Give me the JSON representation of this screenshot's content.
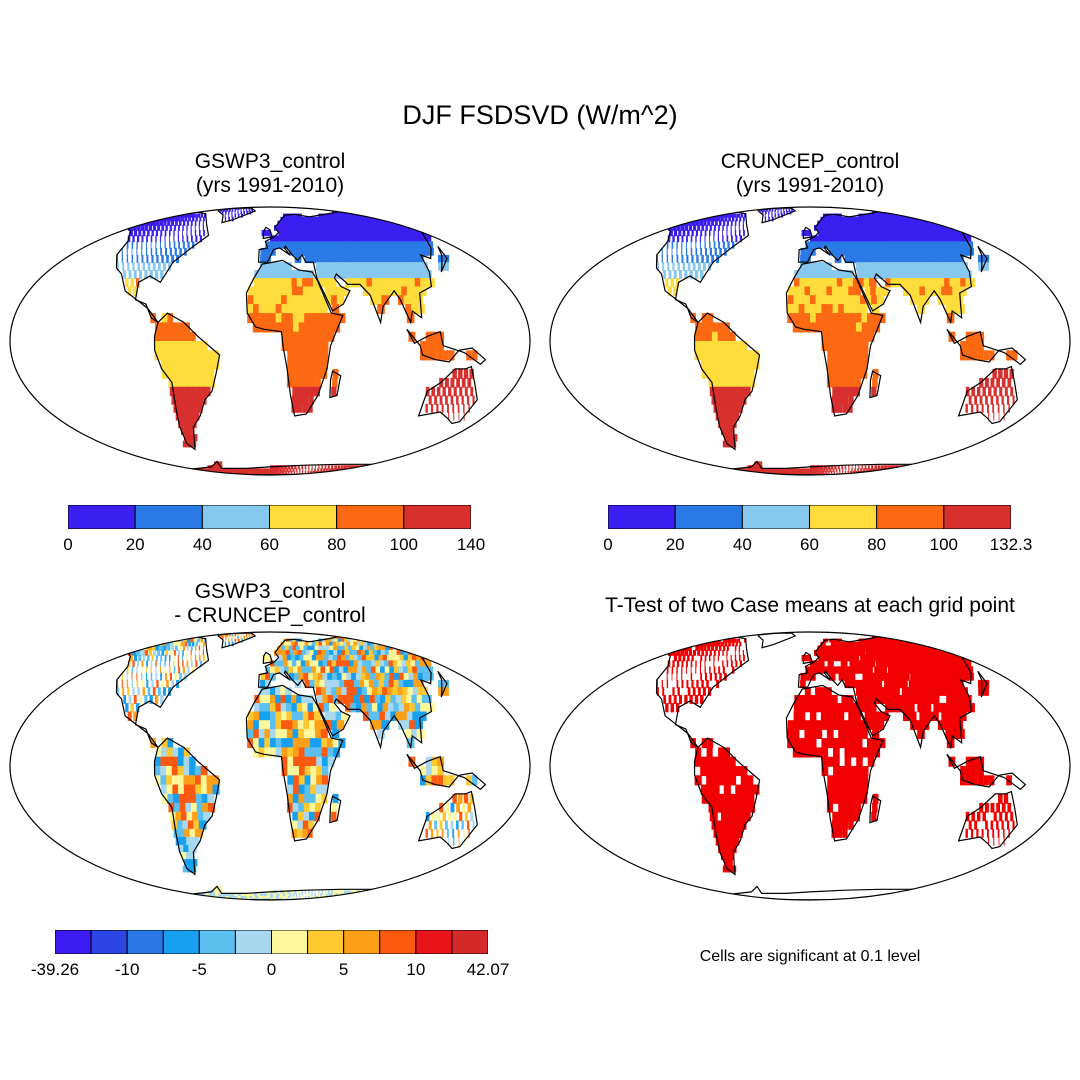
{
  "title": "DJF FSDSVD (W/m^2)",
  "panels": [
    {
      "id": "gswp3",
      "title_lines": [
        "GSWP3_control",
        "(yrs 1991-2010)"
      ]
    },
    {
      "id": "cruncep",
      "title_lines": [
        "CRUNCEP_control",
        " (yrs 1991-2010)"
      ]
    },
    {
      "id": "diff",
      "title_lines": [
        "GSWP3_control",
        "- CRUNCEP_control"
      ]
    },
    {
      "id": "ttest",
      "title_lines": [
        "T-Test of two Case means at each grid point"
      ]
    }
  ],
  "colorbars": {
    "gswp3": {
      "colors": [
        "#3a1ff0",
        "#2a7ae6",
        "#86c8ee",
        "#fddc3c",
        "#fb6a12",
        "#d7302e"
      ],
      "labels": [
        "0",
        "20",
        "40",
        "60",
        "80",
        "100",
        "140"
      ]
    },
    "cruncep": {
      "colors": [
        "#3a1ff0",
        "#2a7ae6",
        "#86c8ee",
        "#fddc3c",
        "#fb6a12",
        "#d7302e"
      ],
      "labels": [
        "0",
        "20",
        "40",
        "60",
        "80",
        "100",
        "132.3"
      ]
    },
    "diff": {
      "colors": [
        "#3b1bf2",
        "#2c45e4",
        "#2a78e6",
        "#17a0f0",
        "#5bc0f0",
        "#a8d8f0",
        "#fdf79c",
        "#fdc830",
        "#fca018",
        "#fc5a10",
        "#e8141a",
        "#d42a2a"
      ],
      "labels": [
        "-39.26",
        "-10",
        "-5",
        "0",
        "5",
        "10",
        "42.07"
      ]
    }
  },
  "significance_note": "Cells are significant at 0.1 level",
  "colors": {
    "land_outline": "#000000",
    "significant": "#f00000"
  }
}
